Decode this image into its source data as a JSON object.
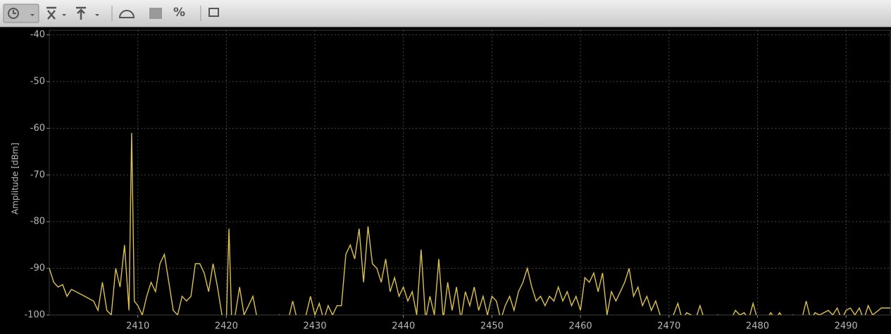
{
  "toolbar": {
    "percent_label": "%"
  },
  "chart_data": {
    "type": "line",
    "y_label": "Amplitude [dBm]",
    "xlim": [
      2400,
      2495
    ],
    "ylim": [
      -100,
      -39
    ],
    "xticks": [
      2410,
      2420,
      2430,
      2440,
      2450,
      2460,
      2470,
      2480,
      2490
    ],
    "yticks": [
      -40,
      -50,
      -60,
      -70,
      -80,
      -90,
      -100
    ],
    "grid": true,
    "x": [
      2400,
      2400.5,
      2401,
      2401.5,
      2402,
      2402.5,
      2403,
      2404,
      2405,
      2405.5,
      2406,
      2406.5,
      2407,
      2407.5,
      2408,
      2408.5,
      2409,
      2409.3,
      2409.6,
      2410,
      2410.5,
      2411,
      2411.5,
      2412,
      2412.5,
      2413,
      2413.5,
      2414,
      2414.5,
      2415,
      2415.5,
      2416,
      2416.5,
      2417,
      2417.5,
      2418,
      2418.5,
      2419,
      2419.5,
      2420,
      2420.3,
      2420.6,
      2421,
      2421.5,
      2422,
      2422.5,
      2423,
      2423.5,
      2424,
      2425,
      2426,
      2427,
      2427.5,
      2428,
      2429,
      2429.5,
      2430,
      2430.5,
      2431,
      2431.5,
      2432,
      2432.5,
      2433,
      2433.5,
      2434,
      2434.5,
      2435,
      2435.5,
      2436,
      2436.5,
      2437,
      2437.5,
      2438,
      2438.5,
      2439,
      2439.5,
      2440,
      2440.5,
      2441,
      2441.5,
      2442,
      2442.5,
      2443,
      2443.5,
      2444,
      2444.5,
      2445,
      2445.5,
      2446,
      2446.5,
      2447,
      2447.5,
      2448,
      2448.5,
      2449,
      2449.5,
      2450,
      2450.5,
      2451,
      2451.5,
      2452,
      2452.5,
      2453,
      2453.5,
      2454,
      2454.5,
      2455,
      2455.5,
      2456,
      2456.5,
      2457,
      2457.5,
      2458,
      2458.5,
      2459,
      2459.5,
      2460,
      2460.5,
      2461,
      2461.5,
      2462,
      2462.5,
      2463,
      2463.5,
      2464,
      2464.5,
      2465,
      2465.5,
      2466,
      2466.5,
      2467,
      2467.5,
      2468,
      2468.5,
      2469,
      2469.5,
      2470,
      2470.5,
      2471,
      2471.5,
      2472,
      2472.5,
      2473,
      2473.5,
      2474,
      2475,
      2475.5,
      2476,
      2477,
      2477.5,
      2478,
      2478.5,
      2479,
      2479.5,
      2480,
      2481,
      2481.5,
      2482,
      2482.5,
      2483,
      2484,
      2485,
      2485.5,
      2486,
      2486.5,
      2487,
      2488,
      2488.5,
      2489,
      2489.5,
      2490,
      2490.5,
      2491,
      2491.5,
      2492,
      2492.5,
      2493,
      2494,
      2495
    ],
    "series": [
      {
        "color": "#dcc050",
        "values": [
          -90,
          -93,
          -94,
          -93.5,
          -96,
          -94.5,
          -95,
          -96,
          -97,
          -99,
          -93,
          -99,
          -100,
          -90,
          -94,
          -85,
          -99,
          -61,
          -97,
          -98,
          -100,
          -96,
          -93,
          -95,
          -89,
          -87,
          -93,
          -99,
          -100,
          -96,
          -97,
          -96,
          -89,
          -89,
          -91,
          -95,
          -89,
          -94,
          -100,
          -101,
          -81.5,
          -101,
          -100,
          -94,
          -100,
          -98,
          -96,
          -101,
          -101,
          -101,
          -100,
          -101,
          -97,
          -101,
          -100,
          -96,
          -100,
          -97.5,
          -101,
          -98,
          -100,
          -98,
          -98,
          -87,
          -85,
          -88,
          -81.5,
          -93,
          -81,
          -89,
          -90,
          -93,
          -88,
          -95,
          -92,
          -96,
          -94,
          -97,
          -95,
          -100,
          -86,
          -101,
          -96,
          -100,
          -88,
          -101,
          -93,
          -99,
          -94,
          -101,
          -95,
          -98,
          -94,
          -99,
          -96,
          -100,
          -96,
          -97,
          -101,
          -98,
          -96,
          -99,
          -95,
          -93,
          -90,
          -94,
          -97,
          -96,
          -98,
          -96,
          -97,
          -94,
          -97,
          -95,
          -98,
          -96,
          -99,
          -92,
          -93,
          -91,
          -95,
          -91,
          -100,
          -95,
          -97,
          -95,
          -93,
          -90,
          -96,
          -94,
          -98,
          -96,
          -99,
          -97,
          -100,
          -101,
          -101,
          -100,
          -97.5,
          -101,
          -99.5,
          -100,
          -101,
          -98,
          -101,
          -101,
          -100,
          -101,
          -101,
          -99,
          -100,
          -99.5,
          -101,
          -97.5,
          -101,
          -101,
          -99.5,
          -101,
          -99.5,
          -101,
          -100,
          -101,
          -97,
          -101,
          -99.5,
          -100,
          -99,
          -100,
          -98.5,
          -101,
          -99,
          -98.5,
          -100,
          -98.5,
          -101,
          -98,
          -100,
          -98.5,
          -98.5
        ]
      }
    ]
  }
}
